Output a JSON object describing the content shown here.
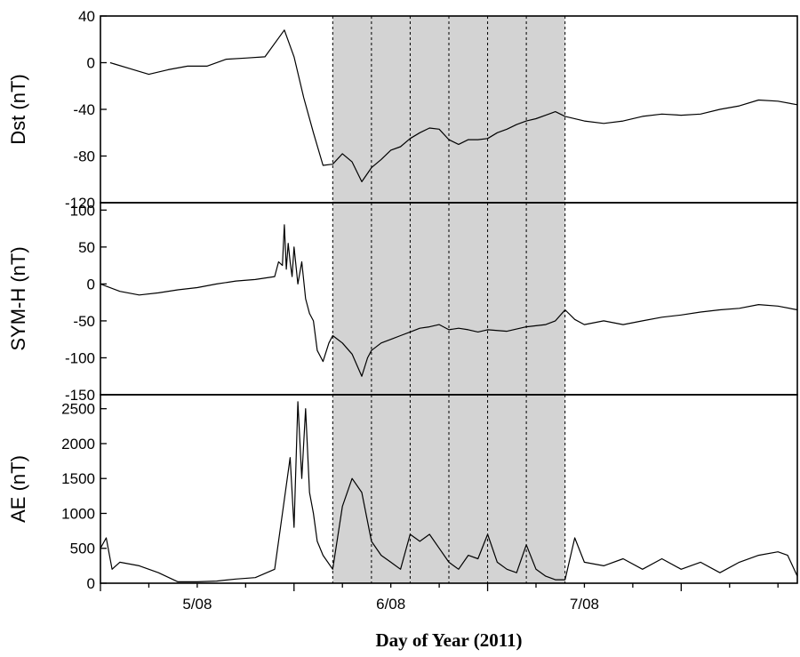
{
  "chart_data": {
    "type": "line",
    "xlabel": "Day of Year (2011)",
    "x_ticks": [
      "5/08",
      "6/08",
      "7/08"
    ],
    "xlim": [
      4.0,
      7.6
    ],
    "shaded_region": [
      5.2,
      6.4
    ],
    "divider_lines": [
      5.2,
      5.4,
      5.6,
      5.8,
      6.0,
      6.2,
      6.4
    ],
    "line_color": "#000000",
    "shade_color": "#d3d3d3",
    "panels": [
      {
        "ylabel": "Dst (nT)",
        "ylim": [
          -120,
          40
        ],
        "yticks": [
          40,
          0,
          -40,
          -80,
          -120
        ],
        "series": [
          {
            "x": [
              4.05,
              4.15,
              4.25,
              4.35,
              4.45,
              4.55,
              4.65,
              4.75,
              4.85,
              4.95,
              5.0,
              5.05,
              5.1,
              5.15,
              5.2,
              5.25,
              5.3,
              5.35,
              5.4,
              5.45,
              5.5,
              5.55,
              5.6,
              5.65,
              5.7,
              5.75,
              5.8,
              5.85,
              5.9,
              5.95,
              6.0,
              6.05,
              6.1,
              6.15,
              6.2,
              6.25,
              6.3,
              6.35,
              6.4,
              6.5,
              6.6,
              6.7,
              6.8,
              6.9,
              7.0,
              7.1,
              7.2,
              7.3,
              7.4,
              7.5,
              7.6
            ],
            "values": [
              0,
              -5,
              -10,
              -6,
              -3,
              -3,
              3,
              4,
              5,
              28,
              5,
              -30,
              -60,
              -88,
              -87,
              -78,
              -85,
              -102,
              -90,
              -83,
              -75,
              -72,
              -65,
              -60,
              -56,
              -57,
              -66,
              -70,
              -66,
              -66,
              -65,
              -60,
              -57,
              -53,
              -50,
              -48,
              -45,
              -42,
              -46,
              -50,
              -52,
              -50,
              -46,
              -44,
              -45,
              -44,
              -40,
              -37,
              -32,
              -33,
              -36
            ]
          }
        ]
      },
      {
        "ylabel": "SYM-H (nT)",
        "ylim": [
          -150,
          110
        ],
        "yticks": [
          100,
          50,
          0,
          -50,
          -100,
          -150
        ],
        "series": [
          {
            "x": [
              4.0,
              4.1,
              4.2,
              4.3,
              4.4,
              4.5,
              4.6,
              4.7,
              4.8,
              4.9,
              4.92,
              4.94,
              4.95,
              4.96,
              4.97,
              4.98,
              4.99,
              5.0,
              5.02,
              5.04,
              5.06,
              5.08,
              5.1,
              5.12,
              5.15,
              5.18,
              5.2,
              5.25,
              5.3,
              5.35,
              5.38,
              5.4,
              5.45,
              5.5,
              5.55,
              5.6,
              5.65,
              5.7,
              5.75,
              5.8,
              5.85,
              5.9,
              5.95,
              6.0,
              6.1,
              6.2,
              6.3,
              6.35,
              6.4,
              6.45,
              6.5,
              6.6,
              6.7,
              6.8,
              6.9,
              7.0,
              7.1,
              7.2,
              7.3,
              7.4,
              7.5,
              7.6
            ],
            "values": [
              0,
              -10,
              -15,
              -12,
              -8,
              -5,
              0,
              4,
              6,
              10,
              30,
              25,
              80,
              20,
              55,
              30,
              10,
              50,
              0,
              30,
              -20,
              -40,
              -50,
              -90,
              -105,
              -80,
              -70,
              -80,
              -95,
              -125,
              -100,
              -90,
              -80,
              -75,
              -70,
              -65,
              -60,
              -58,
              -55,
              -62,
              -60,
              -62,
              -65,
              -62,
              -64,
              -58,
              -55,
              -50,
              -35,
              -48,
              -55,
              -50,
              -55,
              -50,
              -45,
              -42,
              -38,
              -35,
              -33,
              -28,
              -30,
              -35
            ]
          }
        ]
      },
      {
        "ylabel": "AE (nT)",
        "ylim": [
          0,
          2700
        ],
        "yticks": [
          2500,
          2000,
          1500,
          1000,
          500,
          0
        ],
        "series": [
          {
            "x": [
              4.0,
              4.03,
              4.06,
              4.1,
              4.2,
              4.3,
              4.4,
              4.5,
              4.6,
              4.7,
              4.8,
              4.9,
              4.95,
              4.98,
              5.0,
              5.02,
              5.04,
              5.06,
              5.08,
              5.1,
              5.12,
              5.15,
              5.2,
              5.25,
              5.3,
              5.35,
              5.4,
              5.45,
              5.5,
              5.55,
              5.6,
              5.65,
              5.7,
              5.75,
              5.8,
              5.85,
              5.9,
              5.95,
              6.0,
              6.05,
              6.1,
              6.15,
              6.2,
              6.25,
              6.3,
              6.35,
              6.4,
              6.45,
              6.5,
              6.6,
              6.7,
              6.8,
              6.9,
              7.0,
              7.1,
              7.2,
              7.3,
              7.4,
              7.5,
              7.55,
              7.6
            ],
            "values": [
              500,
              650,
              200,
              300,
              250,
              150,
              20,
              20,
              30,
              60,
              80,
              200,
              1200,
              1800,
              800,
              2600,
              1500,
              2500,
              1300,
              1000,
              600,
              400,
              200,
              1100,
              1500,
              1300,
              600,
              400,
              300,
              200,
              700,
              600,
              700,
              500,
              300,
              200,
              400,
              350,
              700,
              300,
              200,
              150,
              550,
              200,
              100,
              50,
              50,
              650,
              300,
              250,
              350,
              200,
              350,
              200,
              300,
              150,
              300,
              400,
              450,
              400,
              100
            ]
          }
        ]
      }
    ]
  }
}
